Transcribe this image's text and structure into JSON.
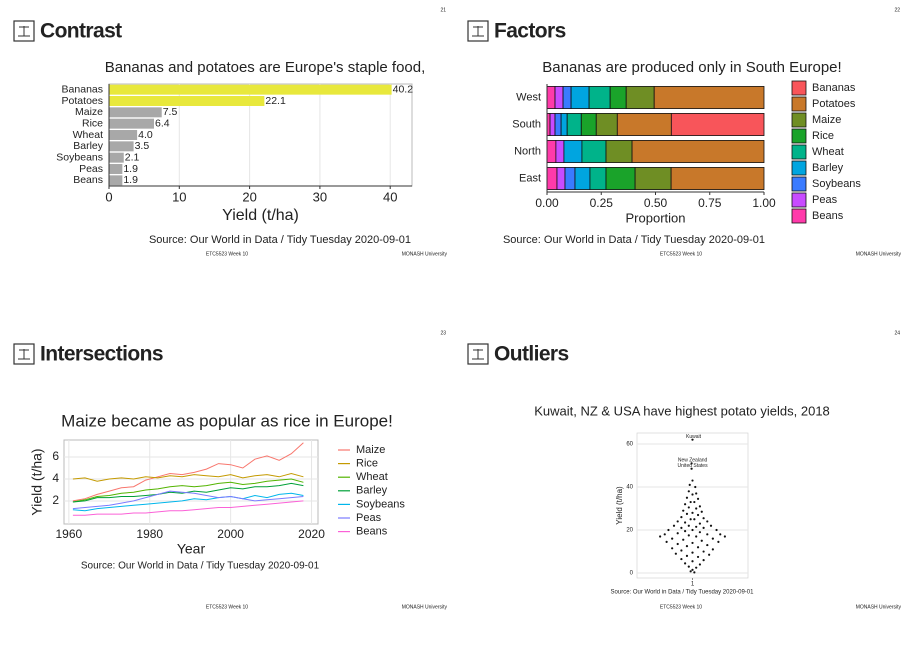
{
  "slides": [
    {
      "title": "Contrast",
      "page_number": "21",
      "footer": "ETC5523 Week 10",
      "logo": "MONASH University"
    },
    {
      "title": "Factors",
      "page_number": "22",
      "footer": "ETC5523 Week 10",
      "logo": "MONASH University"
    },
    {
      "title": "Intersections",
      "page_number": "23",
      "footer": "ETC5523 Week 10",
      "logo": "MONASH University"
    },
    {
      "title": "Outliers",
      "page_number": "24",
      "footer": "ETC5523 Week 10",
      "logo": "MONASH University"
    }
  ],
  "chart_data": [
    {
      "type": "bar",
      "orientation": "horizontal",
      "title": "Bananas and potatoes are Europe's staple food,",
      "categories": [
        "Bananas",
        "Potatoes",
        "Maize",
        "Rice",
        "Wheat",
        "Barley",
        "Soybeans",
        "Peas",
        "Beans"
      ],
      "values": [
        40.2,
        22.1,
        7.5,
        6.4,
        4.0,
        3.5,
        2.1,
        1.9,
        1.9
      ],
      "value_labels": [
        "40.2",
        "22.1",
        "7.5",
        "6.4",
        "4.0",
        "3.5",
        "2.1",
        "1.9",
        "1.9"
      ],
      "colors": [
        "#e8e83c",
        "#e8e83c",
        "#a8a8a8",
        "#a8a8a8",
        "#a8a8a8",
        "#a8a8a8",
        "#a8a8a8",
        "#a8a8a8",
        "#a8a8a8"
      ],
      "xlim": [
        0,
        43.1
      ],
      "xticks": [
        0,
        10,
        20,
        30,
        40
      ],
      "xlabel": "Yield (t/ha)",
      "grid": true,
      "caption": "Source: Our World in Data / Tidy Tuesday 2020-09-01"
    },
    {
      "type": "bar",
      "orientation": "horizontal",
      "stacked": true,
      "title": "Bananas are produced only in South Europe!",
      "categories": [
        "West",
        "South",
        "North",
        "East"
      ],
      "series": [
        {
          "name": "Bananas",
          "color": "#f8555a",
          "values": [
            0,
            0.427,
            0,
            0
          ]
        },
        {
          "name": "Potatoes",
          "color": "#c8782a",
          "values": [
            0.506,
            0.249,
            0.608,
            0.428
          ]
        },
        {
          "name": "Maize",
          "color": "#6f8e24",
          "values": [
            0.129,
            0.097,
            0.12,
            0.166
          ]
        },
        {
          "name": "Rice",
          "color": "#1aa32a",
          "values": [
            0.074,
            0.069,
            0,
            0.134
          ]
        },
        {
          "name": "Wheat",
          "color": "#00b38a",
          "values": [
            0.097,
            0.065,
            0.111,
            0.074
          ]
        },
        {
          "name": "Barley",
          "color": "#00a5e0",
          "values": [
            0.083,
            0.028,
            0.083,
            0.069
          ]
        },
        {
          "name": "Soybeans",
          "color": "#3a7bff",
          "values": [
            0.037,
            0.028,
            0,
            0.046
          ]
        },
        {
          "name": "Peas",
          "color": "#c84bff",
          "values": [
            0.037,
            0.023,
            0.037,
            0.037
          ]
        },
        {
          "name": "Beans",
          "color": "#ff3aaa",
          "values": [
            0.037,
            0.014,
            0.041,
            0.046
          ]
        }
      ],
      "xlim": [
        0,
        1
      ],
      "xticks": [
        {
          "value": 0,
          "label": "0.00"
        },
        {
          "value": 0.25,
          "label": "0.25"
        },
        {
          "value": 0.5,
          "label": "0.50"
        },
        {
          "value": 0.75,
          "label": "0.75"
        },
        {
          "value": 1,
          "label": "1.00"
        }
      ],
      "xlabel": "Proportion",
      "caption": "Source: Our World in Data / Tidy Tuesday 2020-09-01"
    },
    {
      "type": "line",
      "title": "Maize became as popular as rice in Europe!",
      "x": [
        1961,
        1964,
        1967,
        1970,
        1973,
        1976,
        1979,
        1982,
        1985,
        1988,
        1991,
        1994,
        1997,
        2000,
        2003,
        2006,
        2009,
        2012,
        2015,
        2018
      ],
      "series": [
        {
          "name": "Maize",
          "color": "#f8766d",
          "values": [
            2.0,
            2.2,
            2.6,
            2.9,
            3.2,
            3.3,
            3.9,
            4.2,
            4.5,
            4.4,
            4.6,
            4.9,
            5.4,
            5.3,
            5.0,
            5.8,
            6.1,
            5.7,
            6.3,
            7.3
          ]
        },
        {
          "name": "Rice",
          "color": "#c49a00",
          "values": [
            4.0,
            4.1,
            3.8,
            4.0,
            4.1,
            4.0,
            4.2,
            4.1,
            4.3,
            4.2,
            4.4,
            4.3,
            4.2,
            4.4,
            4.1,
            4.3,
            4.4,
            4.2,
            4.5,
            4.2
          ]
        },
        {
          "name": "Wheat",
          "color": "#53b400",
          "values": [
            1.9,
            2.1,
            2.4,
            2.5,
            2.7,
            2.8,
            3.0,
            3.1,
            3.3,
            3.4,
            3.3,
            3.4,
            3.6,
            3.7,
            3.5,
            3.6,
            3.8,
            3.9,
            4.0,
            3.7
          ]
        },
        {
          "name": "Barley",
          "color": "#00a038",
          "values": [
            1.9,
            2.0,
            2.3,
            2.3,
            2.4,
            2.4,
            2.5,
            2.6,
            2.8,
            2.7,
            2.9,
            2.8,
            3.0,
            3.2,
            3.1,
            3.3,
            3.3,
            3.4,
            3.6,
            3.4
          ]
        },
        {
          "name": "Soybeans",
          "color": "#00b6eb",
          "values": [
            1.2,
            1.1,
            1.3,
            1.4,
            1.5,
            1.6,
            1.7,
            1.8,
            1.9,
            2.0,
            2.2,
            2.1,
            2.3,
            2.4,
            2.2,
            2.5,
            2.3,
            2.6,
            2.7,
            2.5
          ]
        },
        {
          "name": "Peas",
          "color": "#7b7bff",
          "values": [
            1.3,
            1.4,
            1.5,
            1.6,
            1.8,
            2.0,
            2.3,
            2.6,
            2.9,
            2.8,
            2.7,
            2.5,
            2.3,
            2.4,
            2.2,
            2.0,
            2.1,
            2.2,
            2.3,
            2.4
          ]
        },
        {
          "name": "Beans",
          "color": "#fb61d7",
          "values": [
            0.7,
            0.7,
            0.8,
            0.8,
            0.8,
            0.9,
            0.9,
            1.0,
            1.1,
            1.1,
            1.2,
            1.3,
            1.4,
            1.4,
            1.5,
            1.6,
            1.7,
            1.8,
            1.9,
            2.0
          ]
        }
      ],
      "xlim": [
        1958.8,
        2021.6
      ],
      "xticks": [
        1960,
        1980,
        2000,
        2020
      ],
      "ylim": [
        -0.1,
        7.55
      ],
      "yticks": [
        2,
        4,
        6
      ],
      "xlabel": "Year",
      "ylabel": "Yield (t/ha)",
      "grid": true,
      "caption": "Source: Our World in Data / Tidy Tuesday 2020-09-01"
    },
    {
      "type": "scatter",
      "title": "Kuwait, NZ & USA have highest potato yields, 2018",
      "x": [
        1.0,
        0.99,
        0.99,
        1.0,
        0.97,
        1.03,
        0.96,
        1.04,
        1.0,
        0.94,
        1.06,
        0.98,
        1.02,
        0.92,
        1.08,
        0.96,
        1.04,
        0.9,
        1.1,
        1.0,
        0.94,
        1.06,
        0.88,
        1.12,
        0.98,
        1.02,
        0.84,
        1.16,
        0.92,
        1.08,
        0.8,
        1.2,
        0.96,
        1.04,
        0.88,
        1.12,
        0.74,
        1.26,
        1.0,
        0.92,
        1.08,
        0.7,
        1.3,
        0.84,
        1.16,
        0.96,
        1.04,
        0.65,
        1.35,
        0.78,
        1.22,
        0.9,
        1.1,
        0.72,
        1.28,
        1.0,
        0.84,
        1.16,
        0.94,
        1.06,
        0.78,
        1.22,
        0.88,
        1.12,
        1.0,
        0.82,
        1.18,
        0.94,
        1.06,
        0.88,
        1.12,
        1.0,
        0.92,
        1.08,
        0.96,
        1.04,
        1.0,
        0.98,
        1.02
      ],
      "y": [
        62,
        51,
        48.5,
        43,
        41,
        40,
        38,
        37,
        36.5,
        35,
        34.5,
        33,
        33,
        32,
        31,
        30.5,
        30,
        29,
        28.5,
        28,
        27.5,
        27,
        26,
        25.5,
        25,
        25,
        24,
        24,
        23.5,
        23,
        22,
        22,
        22,
        21.5,
        21,
        21,
        20,
        20,
        20,
        19.5,
        19,
        18,
        18,
        18.5,
        18,
        17.5,
        17,
        17,
        17,
        16,
        16,
        15.5,
        15,
        14.5,
        14.5,
        14,
        13.5,
        13,
        12.5,
        12,
        11.5,
        11,
        10.5,
        10,
        9.5,
        9,
        8.5,
        8,
        7.5,
        6.5,
        6,
        5.5,
        4.5,
        4,
        3,
        2.5,
        1.5,
        0.8,
        0.3
      ],
      "color": "#111111",
      "annotations": [
        {
          "text": "Kuwait",
          "x": 1.0,
          "y": 62
        },
        {
          "text": "New Zealand",
          "x": 0.99,
          "y": 51
        },
        {
          "text": "United States",
          "x": 0.99,
          "y": 48.5
        }
      ],
      "xlim": [
        0.4,
        1.6
      ],
      "xticks": [
        1
      ],
      "ylim": [
        -2.3,
        65.1
      ],
      "yticks": [
        0,
        20,
        40,
        60
      ],
      "ylabel": "Yield (t/ha)",
      "grid": true,
      "caption": "Source: Our World in Data / Tidy Tuesday 2020-09-01"
    }
  ]
}
